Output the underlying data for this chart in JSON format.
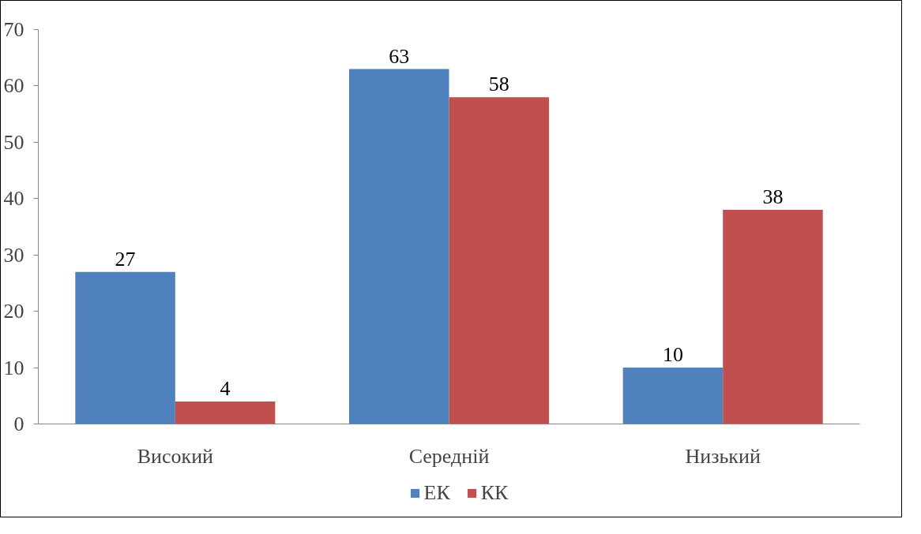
{
  "chart_data": {
    "type": "bar",
    "categories": [
      "Високий",
      "Середній",
      "Низький"
    ],
    "series": [
      {
        "name": "ЕК",
        "color": "#4f81bd",
        "values": [
          27,
          63,
          10
        ]
      },
      {
        "name": "КК",
        "color": "#c0504d",
        "values": [
          4,
          58,
          38
        ]
      }
    ],
    "ylim": [
      0,
      70
    ],
    "yticks": [
      0,
      10,
      20,
      30,
      40,
      50,
      60,
      70
    ],
    "grid": false,
    "legend": "bottom",
    "data_labels": true
  }
}
